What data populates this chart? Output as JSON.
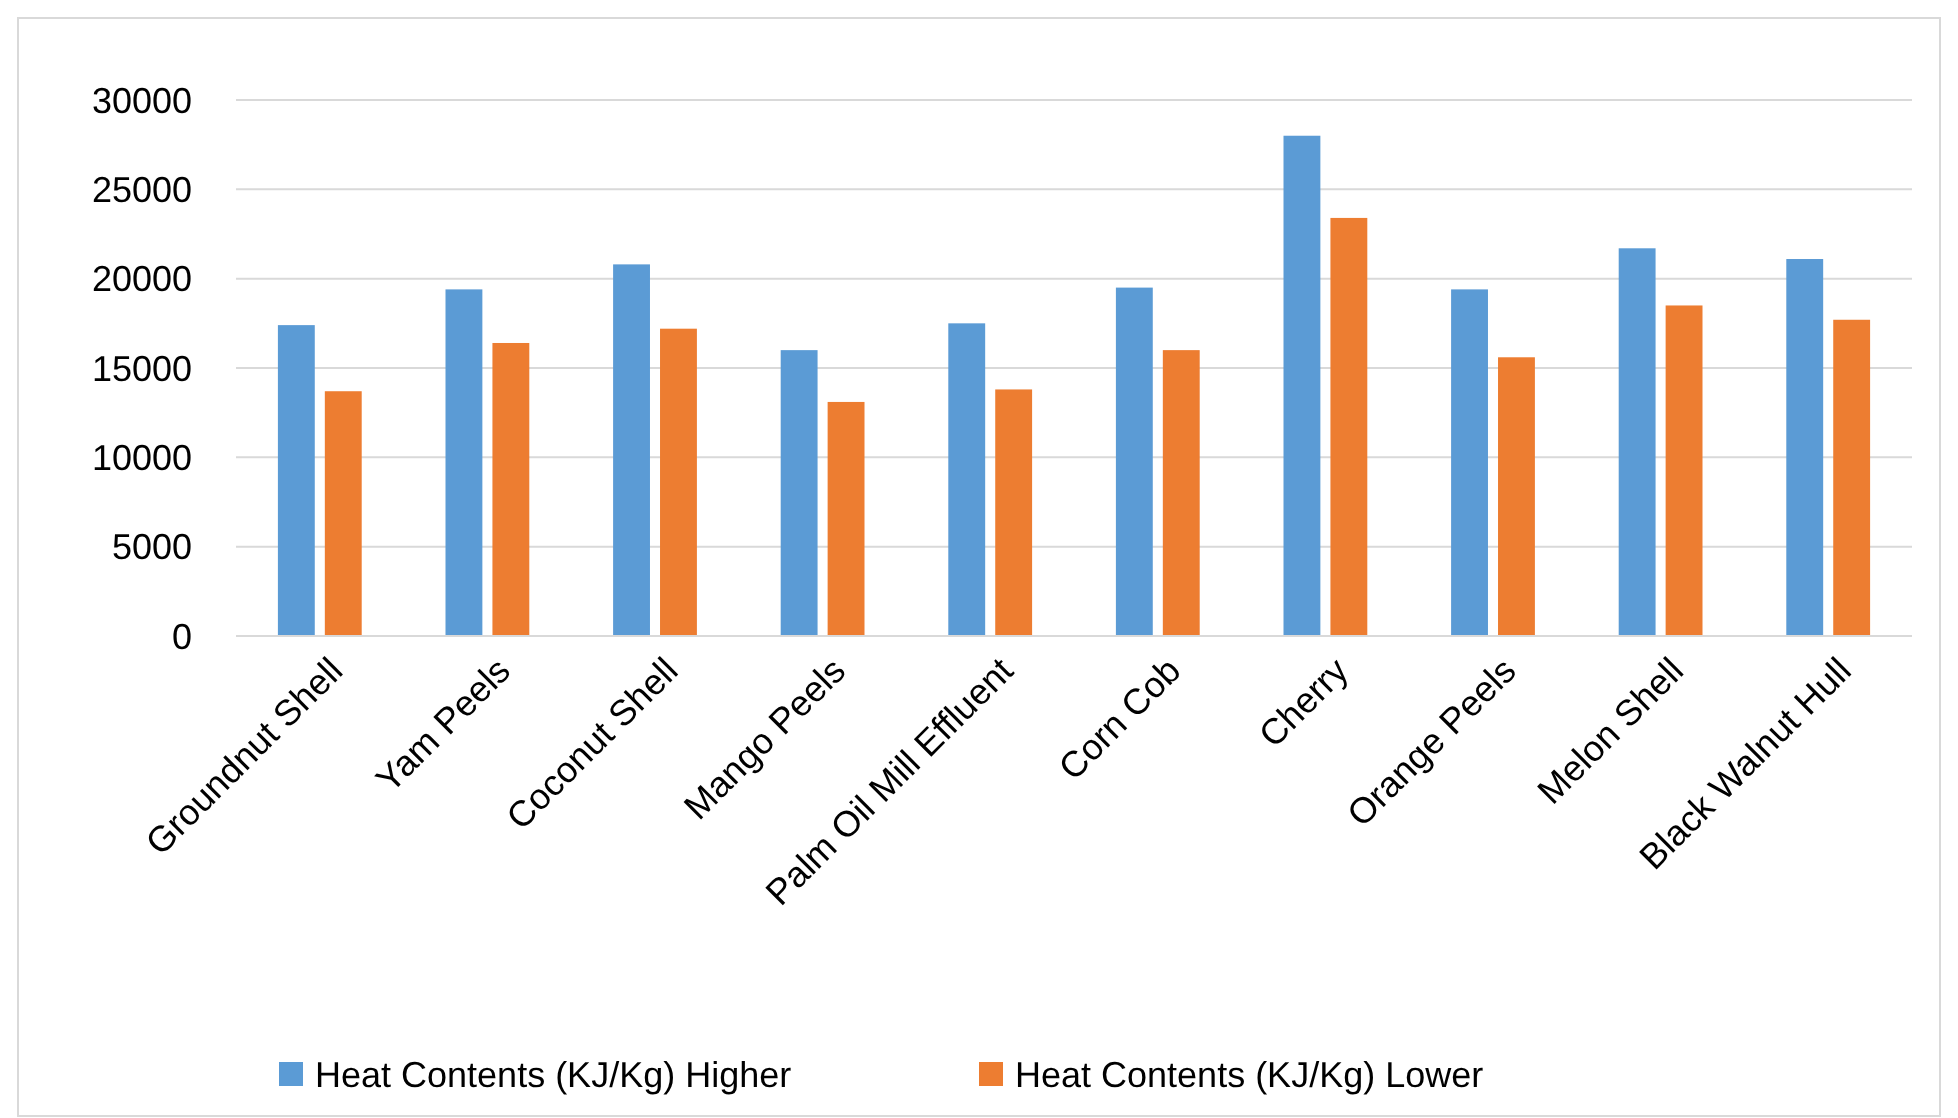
{
  "chart_data": {
    "type": "bar",
    "categories": [
      "Groundnut Shell",
      "Yam Peels",
      "Coconut Shell",
      "Mango Peels",
      "Palm Oil Mill Effluent",
      "Corn Cob",
      "Cherry",
      "Orange Peels",
      "Melon Shell",
      "Black Walnut Hull"
    ],
    "series": [
      {
        "name": "Heat Contents (KJ/Kg) Higher",
        "color": "#5b9bd5",
        "values": [
          17400,
          19400,
          20800,
          16000,
          17500,
          19500,
          28000,
          19400,
          21700,
          21100
        ]
      },
      {
        "name": "Heat Contents (KJ/Kg) Lower",
        "color": "#ed7d31",
        "values": [
          13700,
          16400,
          17200,
          13100,
          13800,
          16000,
          23400,
          15600,
          18500,
          17700
        ]
      }
    ],
    "ylim": [
      0,
      30000
    ],
    "yticks": [
      0,
      5000,
      10000,
      15000,
      20000,
      25000,
      30000
    ],
    "grid": "y",
    "legend": "bottom"
  }
}
